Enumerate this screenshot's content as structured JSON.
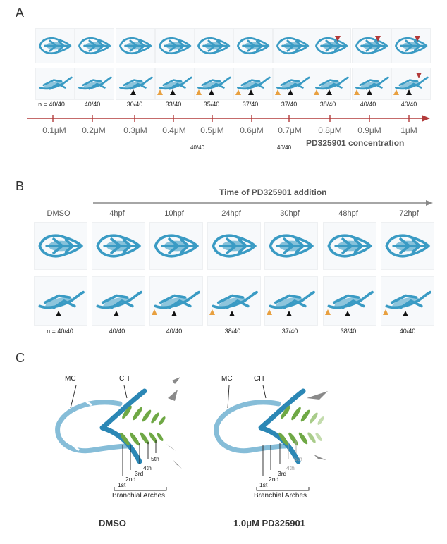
{
  "panelA": {
    "letter": "A",
    "counts": [
      "n = 40/40",
      "40/40",
      "30/40",
      "33/40",
      "35/40",
      "37/40",
      "37/40",
      "38/40",
      "40/40",
      "40/40"
    ],
    "concentrations": [
      "0.1μM",
      "0.2μM",
      "0.3μM",
      "0.4μM",
      "0.5μM",
      "0.6μM",
      "0.7μM",
      "0.8μM",
      "0.9μM",
      "1μM"
    ],
    "extra_count_1": "40/40",
    "extra_count_2": "40/40",
    "axis_title": "PD325901 concentration"
  },
  "panelB": {
    "letter": "B",
    "time_title": "Time of PD325901 addition",
    "conditions": [
      "DMSO",
      "4hpf",
      "10hpf",
      "24hpf",
      "30hpf",
      "48hpf",
      "72hpf"
    ],
    "counts": [
      "n = 40/40",
      "40/40",
      "40/40",
      "38/40",
      "37/40",
      "38/40",
      "40/40"
    ]
  },
  "panelC": {
    "letter": "C",
    "left": {
      "mc": "MC",
      "ch": "CH",
      "arches": [
        "1st",
        "2nd",
        "3rd",
        "4th",
        "5th"
      ],
      "bracket_label": "Branchial Arches",
      "caption": "DMSO"
    },
    "right": {
      "mc": "MC",
      "ch": "CH",
      "arches": [
        "1st",
        "2nd",
        "3rd",
        "4th",
        "5th"
      ],
      "bracket_label": "Branchial Arches",
      "caption": "1.0μM PD325901"
    }
  },
  "colors": {
    "cartilage": "#3a9bc4",
    "arrow_red": "#b23a3a",
    "arrowhead_orange": "#e8a040",
    "green": "#7fae4a",
    "mc_light": "#86bdd8"
  }
}
